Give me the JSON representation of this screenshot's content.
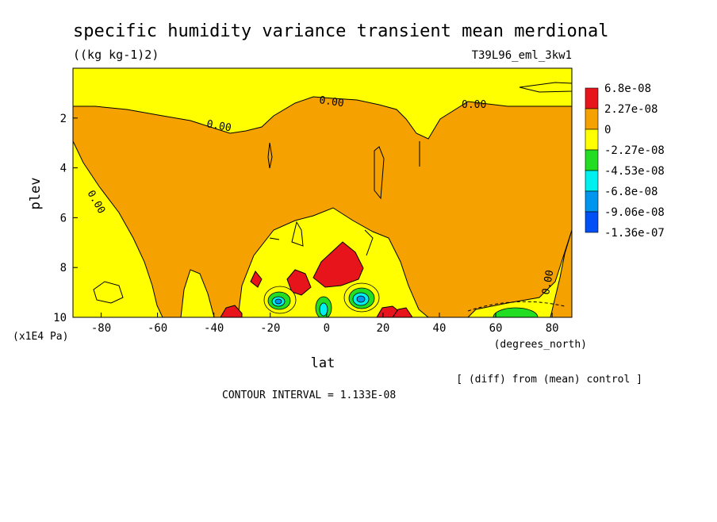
{
  "chart_data": {
    "type": "contour",
    "title": "specific humidity variance transient mean merdional",
    "units": "((kg kg-1)2)",
    "run_id": "T39L96_eml_3kw1",
    "xlabel": "lat",
    "xunits": "(degrees_north)",
    "ylabel": "plev",
    "yunits": "(x1E4 Pa)",
    "xlim": [
      -90,
      87
    ],
    "ylim": [
      10,
      0
    ],
    "x_ticks": [
      "-80",
      "-60",
      "-40",
      "-20",
      "0",
      "20",
      "40",
      "60",
      "80"
    ],
    "x_tick_values": [
      -80,
      -60,
      -40,
      -20,
      0,
      20,
      40,
      60,
      80
    ],
    "y_ticks": [
      "2",
      "4",
      "6",
      "8",
      "10"
    ],
    "y_tick_values": [
      2,
      4,
      6,
      8,
      10
    ],
    "contour_interval_label": "CONTOUR INTERVAL = 1.133E-08",
    "note": "[ (diff) from (mean) control ]",
    "contour_labels": [
      "0.00",
      "0.00",
      "0.00",
      "0.00",
      "0.00",
      "0.00"
    ],
    "colorbar": {
      "labels": [
        "6.8e-08",
        "2.27e-08",
        "0",
        "-2.27e-08",
        "-4.53e-08",
        "-6.8e-08",
        "-9.06e-08",
        "-1.36e-07"
      ],
      "colors": [
        "#e8141c",
        "#f5a200",
        "#ffff00",
        "#22dd22",
        "#00f0f0",
        "#0096f0",
        "#0050f5"
      ]
    }
  }
}
